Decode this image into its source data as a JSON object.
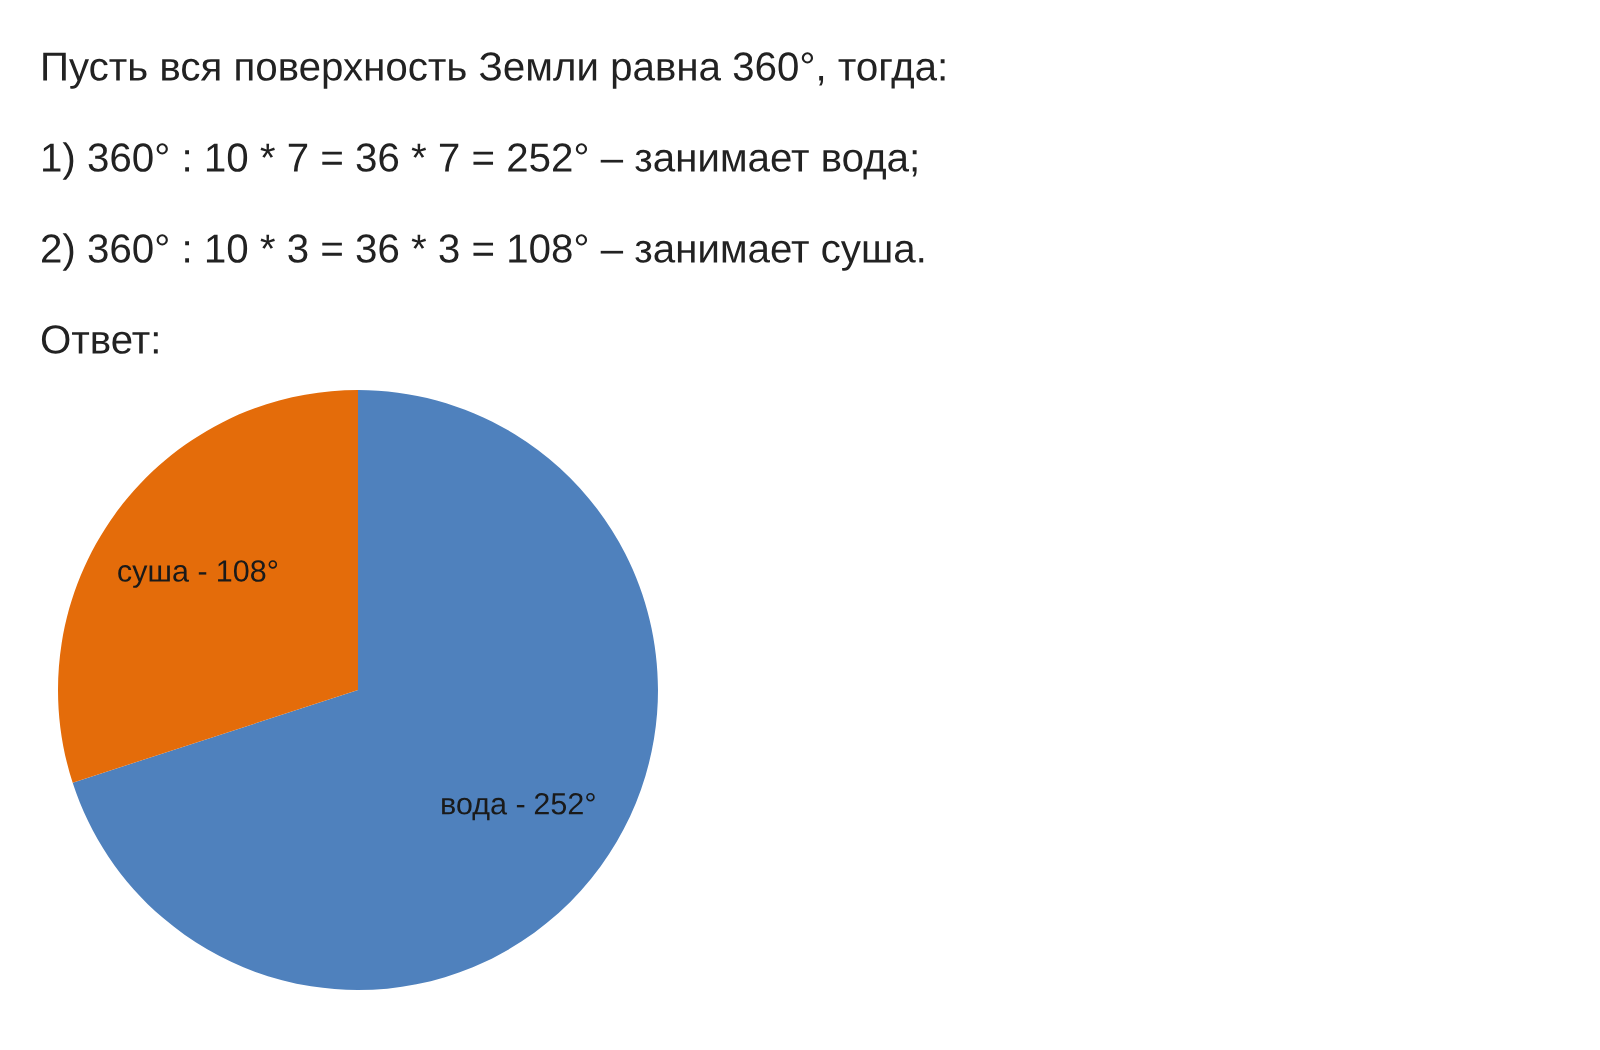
{
  "chart_data": {
    "type": "pie",
    "annotations": [
      "Пусть вся поверхность Земли равна 360°, тогда:",
      "1) 360° : 10 * 7 = 36 * 7 = 252° – занимает вода;",
      "2) 360° : 10 * 3 = 36 * 3 = 108° – занимает суша.",
      "Ответ:"
    ],
    "categories": [
      "вода -",
      "суша -"
    ],
    "values": [
      252,
      108
    ],
    "value_labels": [
      "252°",
      "108°"
    ],
    "colors": [
      "#4f81bd",
      "#e46c0a"
    ]
  }
}
